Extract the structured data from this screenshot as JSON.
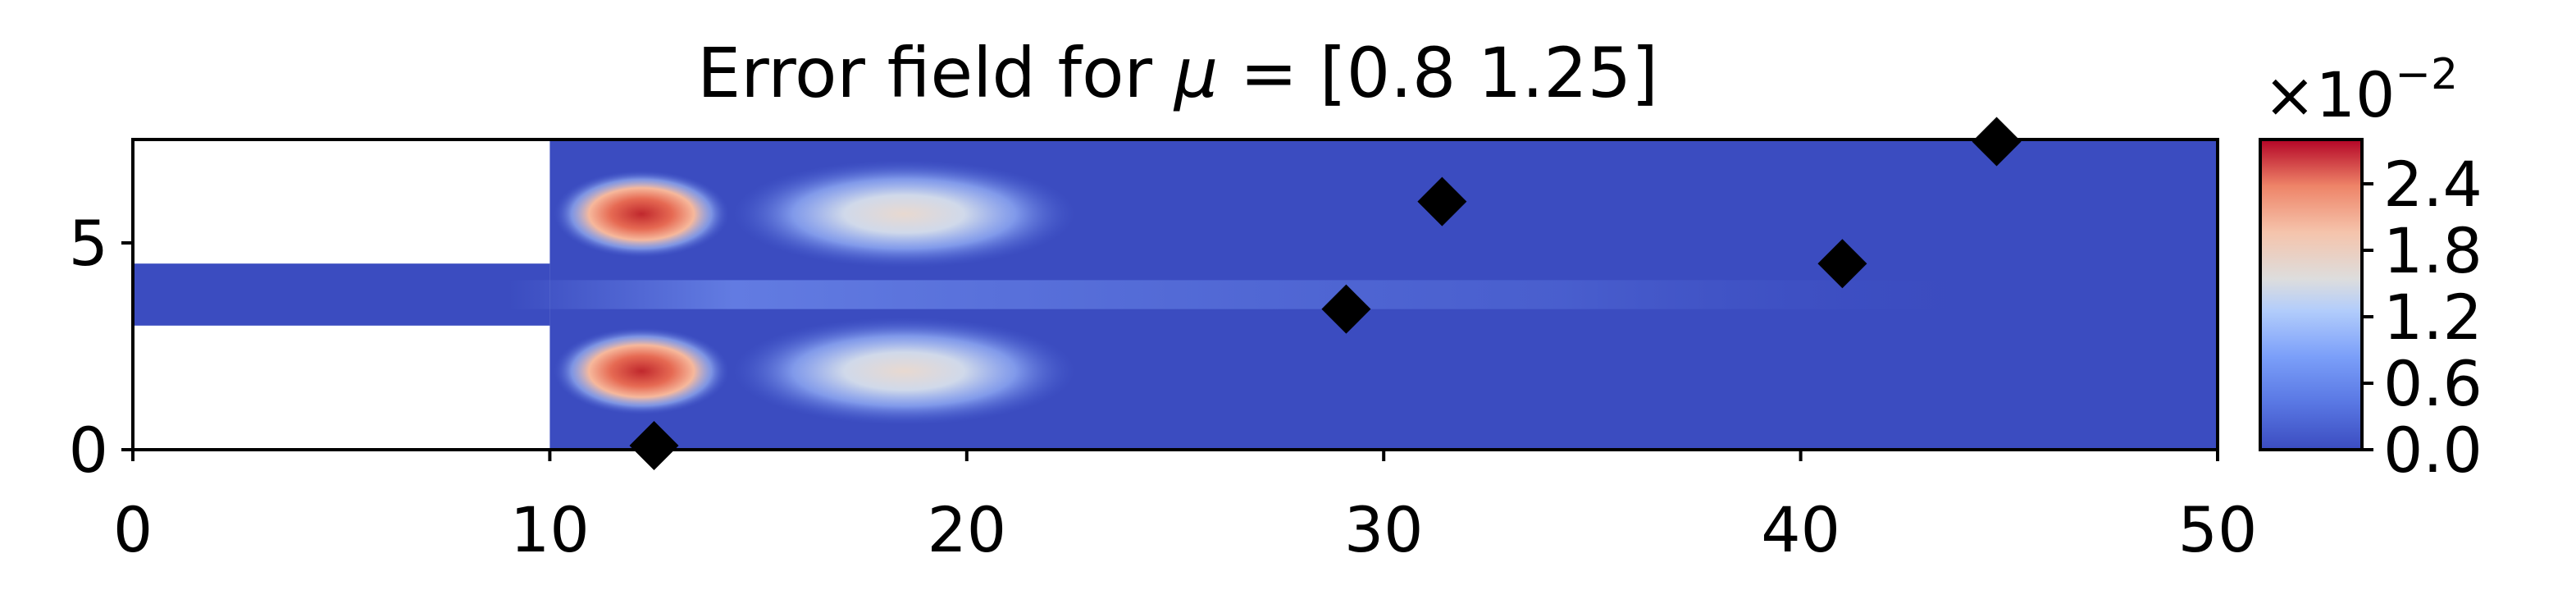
{
  "chart_data": {
    "type": "heatmap",
    "title_prefix": "Error field for ",
    "title_symbol": "μ",
    "title_suffix": " = [0.8  1.25]",
    "xlabel": "",
    "ylabel": "",
    "xlim": [
      0,
      50
    ],
    "ylim": [
      0,
      7.5
    ],
    "x_ticks": [
      "0",
      "10",
      "20",
      "30",
      "40",
      "50"
    ],
    "y_ticks": [
      "0",
      "5"
    ],
    "colorbar": {
      "colormap": "coolwarm",
      "range": [
        0.0,
        2.8
      ],
      "ticks": [
        "0.0",
        "0.6",
        "1.2",
        "1.8",
        "2.4"
      ],
      "multiplier_base": "×10",
      "multiplier_exp": "−2"
    },
    "domain": {
      "inlet_channel": {
        "x": [
          0,
          10
        ],
        "y": [
          3.0,
          4.5
        ]
      },
      "main_channel": {
        "x": [
          10,
          50
        ],
        "y": [
          0,
          7.5
        ]
      }
    },
    "hot_spots": [
      {
        "x": 12.2,
        "y": 5.7,
        "value": 2.8
      },
      {
        "x": 12.2,
        "y": 1.9,
        "value": 2.8
      },
      {
        "x": 18.5,
        "y": 5.7,
        "value": 1.6
      },
      {
        "x": 18.5,
        "y": 1.9,
        "value": 1.6
      }
    ],
    "markers": [
      {
        "x": 12.5,
        "y": 0.1
      },
      {
        "x": 29.1,
        "y": 3.4
      },
      {
        "x": 31.4,
        "y": 6.0
      },
      {
        "x": 41.0,
        "y": 4.5
      },
      {
        "x": 44.7,
        "y": 7.45
      }
    ],
    "colors": {
      "low": "#3b4cc0",
      "mid": "#dddddd",
      "high": "#b40426",
      "marker": "#000000"
    }
  }
}
